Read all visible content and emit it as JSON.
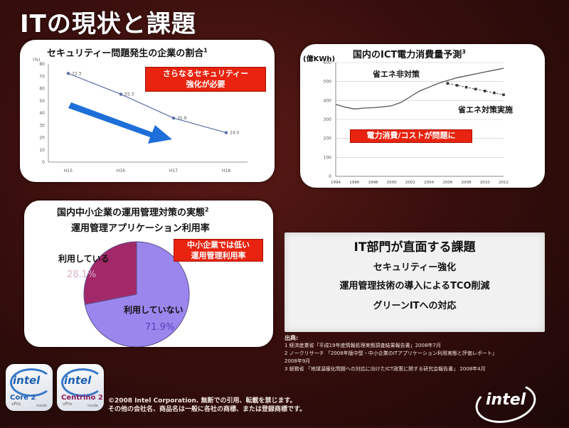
{
  "slide": {
    "title": "ITの現状と課題"
  },
  "security_panel": {
    "title": "セキュリティー問題発生の企業の割合",
    "footnote": "1",
    "y_unit": "(%)",
    "callout_lines": [
      "さらなるセキュリティー",
      "強化が必要"
    ],
    "chart_data": {
      "type": "line",
      "categories": [
        "H15",
        "H16",
        "H17",
        "H18"
      ],
      "values": [
        72.3,
        55.3,
        35.9,
        24.0
      ],
      "value_labels": [
        "72.3",
        "55.3",
        "35.9",
        "24.0"
      ],
      "ylim": [
        0,
        80
      ],
      "yticks": [
        "0",
        "10",
        "20",
        "30",
        "40",
        "50",
        "60",
        "70",
        "80"
      ],
      "colors": {
        "line": "#5b6fa8",
        "arrow": "#1e6fd9"
      }
    }
  },
  "power_panel": {
    "title": "国内のICT電力消費量予測",
    "footnote": "3",
    "y_unit": "(億KWh)",
    "label_no_saving": "省エネ非対策",
    "label_saving": "省エネ対策実施",
    "callout": "電力消費/コストが問題に",
    "chart_data": {
      "type": "line",
      "x": [
        1994,
        1996,
        1998,
        2000,
        2002,
        2004,
        2006,
        2008,
        2010,
        2012
      ],
      "xtick_labels": [
        "1994",
        "1996",
        "1998",
        "2000",
        "2002",
        "2004",
        "2006",
        "2008",
        "2010",
        "2012"
      ],
      "yticks": [
        "0",
        "100",
        "200",
        "300",
        "400",
        "500",
        "600"
      ],
      "ylim": [
        0,
        600
      ],
      "series": [
        {
          "name": "省エネ非対策",
          "x": [
            1994,
            1995,
            1996,
            1997,
            1998,
            1999,
            2000,
            2001,
            2002,
            2003,
            2004,
            2005,
            2006,
            2007,
            2008,
            2009,
            2010,
            2011,
            2012
          ],
          "values": [
            380,
            365,
            355,
            360,
            362,
            366,
            372,
            390,
            420,
            450,
            470,
            490,
            505,
            520,
            530,
            540,
            550,
            560,
            570
          ]
        },
        {
          "name": "省エネ対策実施",
          "x": [
            2006,
            2007,
            2008,
            2009,
            2010,
            2011,
            2012
          ],
          "values": [
            490,
            480,
            470,
            460,
            450,
            440,
            430
          ]
        }
      ],
      "colors": {
        "line": "#555555",
        "markers": "#333333"
      }
    }
  },
  "sme_panel": {
    "title": "国内中小企業の運用管理対策の実態",
    "footnote": "2",
    "subtitle": "運用管理アプリケーション利用率",
    "callout_lines": [
      "中小企業では低い",
      "運用管理利用率"
    ],
    "chart_data": {
      "type": "pie",
      "slices": [
        {
          "label": "利用している",
          "value": 28.1,
          "display": "28.1%",
          "color": "#a3286a"
        },
        {
          "label": "利用していない",
          "value": 71.9,
          "display": "71.9%",
          "color": "#9b86ee"
        }
      ]
    }
  },
  "issues_box": {
    "title": "IT部門が直面する課題",
    "items": [
      "セキュリティー強化",
      "運用管理技術の導入によるTCO削減",
      "グリーンITへの対応"
    ]
  },
  "sources": {
    "head": "出典:",
    "lines": [
      "1 経済産業省「平成19年度情報処理実態調査結果報告書」2008年7月",
      "2 ノークリサーチ 「2008年版中堅・中小企業のITアプリケーション利用実態と評価レポート」",
      "2008年9月",
      "3 総務省 「地球温暖化問題への対応に向けたICT政策に関する研究会報告書」 2008年4月"
    ]
  },
  "copyright": {
    "line1": "©2008 Intel Corporation. 無断での引用、転載を禁じます。",
    "line2": "その他の会社名、商品名は一般に各社の商標、または登録商標です。"
  },
  "badges": [
    {
      "brand": "intel",
      "product": "Core 2",
      "sub": "vPro",
      "inside": "inside"
    },
    {
      "brand": "intel",
      "product": "Centrino 2",
      "sub": "vPro",
      "inside": "inside"
    }
  ],
  "logo": {
    "text": "intel"
  }
}
